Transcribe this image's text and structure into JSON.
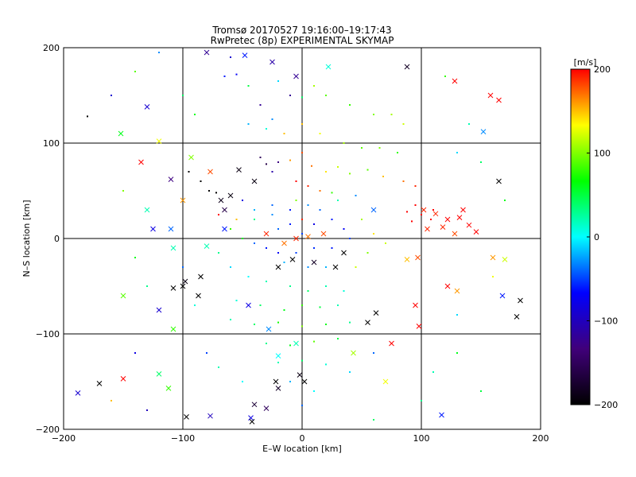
{
  "chart_data": {
    "type": "scatter",
    "title": "Tromsø 20170527 19:16:00–19:17:43",
    "subtitle": "RwPretec (8p) EXPERIMENTAL SKYMAP",
    "xlabel": "E–W location [km]",
    "ylabel": "N–S location [km]",
    "xlim": [
      -200,
      200
    ],
    "ylim": [
      -200,
      200
    ],
    "x_ticks": [
      -200,
      -100,
      0,
      100,
      200
    ],
    "y_ticks": [
      -200,
      -100,
      0,
      100,
      200
    ],
    "x_tick_labels": [
      "−200",
      "−100",
      "0",
      "100",
      "200"
    ],
    "y_tick_labels": [
      "−200",
      "−100",
      "0",
      "100",
      "200"
    ],
    "grid": true,
    "grid_lines_x": [
      -100,
      0,
      100
    ],
    "grid_lines_y": [
      -100,
      0,
      100
    ],
    "colorbar": {
      "label": "[m/s]",
      "range": [
        -200,
        200
      ],
      "ticks": [
        200,
        100,
        0,
        -100,
        -200
      ],
      "tick_labels": [
        "200",
        "100",
        "0",
        "−100",
        "−200"
      ],
      "colormap": [
        "#000000",
        "#40007a",
        "#0000ff",
        "#00ffff",
        "#00ff00",
        "#ffff00",
        "#ff0000"
      ]
    },
    "series": [
      {
        "marker": "cross",
        "points": [
          [
            -80,
            195,
            -120
          ],
          [
            -48,
            192,
            -60
          ],
          [
            -25,
            185,
            -110
          ],
          [
            -5,
            170,
            -120
          ],
          [
            22,
            180,
            10
          ],
          [
            88,
            180,
            -180
          ],
          [
            128,
            165,
            200
          ],
          [
            158,
            150,
            200
          ],
          [
            165,
            145,
            200
          ],
          [
            152,
            112,
            -30
          ],
          [
            -152,
            110,
            60
          ],
          [
            -130,
            138,
            -90
          ],
          [
            -120,
            102,
            130
          ],
          [
            -93,
            85,
            100
          ],
          [
            -77,
            70,
            180
          ],
          [
            -40,
            60,
            -190
          ],
          [
            -53,
            72,
            -190
          ],
          [
            -60,
            45,
            -190
          ],
          [
            -68,
            40,
            -185
          ],
          [
            -65,
            30,
            -160
          ],
          [
            -110,
            62,
            -130
          ],
          [
            -130,
            30,
            20
          ],
          [
            -125,
            10,
            -80
          ],
          [
            -110,
            10,
            -40
          ],
          [
            -65,
            10,
            -60
          ],
          [
            -30,
            5,
            190
          ],
          [
            -15,
            -5,
            170
          ],
          [
            -5,
            0,
            190
          ],
          [
            5,
            2,
            170
          ],
          [
            18,
            5,
            180
          ],
          [
            35,
            -15,
            -200
          ],
          [
            -8,
            -22,
            -200
          ],
          [
            -20,
            -30,
            -200
          ],
          [
            28,
            -30,
            -200
          ],
          [
            10,
            -25,
            -180
          ],
          [
            -85,
            -40,
            -200
          ],
          [
            -98,
            -45,
            -190
          ],
          [
            -100,
            -50,
            -200
          ],
          [
            -108,
            -52,
            -200
          ],
          [
            -87,
            -60,
            -200
          ],
          [
            -45,
            -70,
            -80
          ],
          [
            55,
            -88,
            -200
          ],
          [
            62,
            -78,
            -200
          ],
          [
            183,
            -65,
            -200
          ],
          [
            180,
            -82,
            -200
          ],
          [
            122,
            -50,
            200
          ],
          [
            130,
            -55,
            160
          ],
          [
            95,
            -70,
            200
          ],
          [
            98,
            -92,
            200
          ],
          [
            -150,
            -60,
            90
          ],
          [
            -120,
            -75,
            -90
          ],
          [
            -108,
            -95,
            80
          ],
          [
            -28,
            -95,
            -30
          ],
          [
            -5,
            -110,
            20
          ],
          [
            -20,
            -123,
            0
          ],
          [
            -2,
            -143,
            -190
          ],
          [
            2,
            -150,
            -200
          ],
          [
            -22,
            -150,
            -200
          ],
          [
            -20,
            -157,
            -180
          ],
          [
            -40,
            -174,
            -170
          ],
          [
            -30,
            -178,
            -150
          ],
          [
            -43,
            -188,
            -80
          ],
          [
            -42,
            -192,
            -200
          ],
          [
            -97,
            -187,
            -200
          ],
          [
            -77,
            -186,
            -100
          ],
          [
            -150,
            -147,
            200
          ],
          [
            -112,
            -157,
            80
          ],
          [
            -120,
            -142,
            40
          ],
          [
            -170,
            -152,
            -200
          ],
          [
            -188,
            -162,
            -90
          ],
          [
            -108,
            -10,
            20
          ],
          [
            -80,
            -8,
            20
          ],
          [
            -100,
            40,
            160
          ],
          [
            60,
            30,
            -40
          ],
          [
            102,
            30,
            190
          ],
          [
            112,
            26,
            190
          ],
          [
            122,
            20,
            200
          ],
          [
            132,
            22,
            200
          ],
          [
            140,
            14,
            200
          ],
          [
            146,
            7,
            200
          ],
          [
            118,
            12,
            190
          ],
          [
            135,
            30,
            200
          ],
          [
            128,
            5,
            180
          ],
          [
            105,
            10,
            190
          ],
          [
            97,
            -20,
            180
          ],
          [
            88,
            -22,
            150
          ],
          [
            43,
            -120,
            110
          ],
          [
            70,
            -150,
            130
          ],
          [
            75,
            -110,
            200
          ],
          [
            -135,
            80,
            200
          ],
          [
            165,
            60,
            -200
          ],
          [
            160,
            -20,
            160
          ],
          [
            170,
            -22,
            120
          ],
          [
            168,
            -60,
            -60
          ],
          [
            117,
            -185,
            -60
          ]
        ]
      },
      {
        "marker": "dot",
        "points": [
          [
            -120,
            195,
            -30
          ],
          [
            -60,
            190,
            -90
          ],
          [
            -65,
            170,
            -60
          ],
          [
            -55,
            172,
            -70
          ],
          [
            -45,
            160,
            50
          ],
          [
            -20,
            165,
            -10
          ],
          [
            -10,
            150,
            -120
          ],
          [
            0,
            148,
            40
          ],
          [
            10,
            160,
            110
          ],
          [
            20,
            150,
            90
          ],
          [
            40,
            140,
            80
          ],
          [
            60,
            130,
            100
          ],
          [
            75,
            130,
            110
          ],
          [
            85,
            120,
            120
          ],
          [
            -25,
            125,
            -30
          ],
          [
            -45,
            120,
            -20
          ],
          [
            -35,
            140,
            -120
          ],
          [
            -30,
            115,
            10
          ],
          [
            -15,
            110,
            150
          ],
          [
            0,
            120,
            150
          ],
          [
            15,
            110,
            130
          ],
          [
            35,
            100,
            110
          ],
          [
            50,
            95,
            90
          ],
          [
            65,
            95,
            100
          ],
          [
            80,
            90,
            80
          ],
          [
            -35,
            85,
            -150
          ],
          [
            -30,
            78,
            -160
          ],
          [
            -20,
            80,
            -130
          ],
          [
            -25,
            70,
            -110
          ],
          [
            -10,
            82,
            160
          ],
          [
            0,
            90,
            180
          ],
          [
            8,
            76,
            170
          ],
          [
            20,
            70,
            140
          ],
          [
            30,
            75,
            120
          ],
          [
            40,
            68,
            100
          ],
          [
            55,
            72,
            90
          ],
          [
            68,
            65,
            150
          ],
          [
            85,
            60,
            170
          ],
          [
            95,
            55,
            190
          ],
          [
            -5,
            60,
            200
          ],
          [
            5,
            55,
            190
          ],
          [
            15,
            50,
            170
          ],
          [
            25,
            48,
            80
          ],
          [
            30,
            40,
            20
          ],
          [
            45,
            45,
            -30
          ],
          [
            -50,
            40,
            -80
          ],
          [
            -40,
            30,
            -20
          ],
          [
            -25,
            35,
            -40
          ],
          [
            -10,
            30,
            -60
          ],
          [
            0,
            20,
            190
          ],
          [
            -20,
            10,
            -40
          ],
          [
            -10,
            15,
            -60
          ],
          [
            0,
            5,
            -50
          ],
          [
            10,
            15,
            -80
          ],
          [
            25,
            20,
            -60
          ],
          [
            35,
            10,
            -70
          ],
          [
            40,
            0,
            -50
          ],
          [
            -40,
            -5,
            -40
          ],
          [
            -30,
            -10,
            -60
          ],
          [
            -20,
            -15,
            -70
          ],
          [
            -5,
            -15,
            -50
          ],
          [
            10,
            -10,
            -55
          ],
          [
            25,
            -10,
            -60
          ],
          [
            -15,
            -25,
            -20
          ],
          [
            5,
            -30,
            -30
          ],
          [
            20,
            -30,
            -20
          ],
          [
            -60,
            -30,
            -10
          ],
          [
            -45,
            -40,
            0
          ],
          [
            -30,
            -45,
            20
          ],
          [
            -10,
            -50,
            30
          ],
          [
            5,
            -55,
            40
          ],
          [
            20,
            -50,
            20
          ],
          [
            35,
            -55,
            10
          ],
          [
            -55,
            -65,
            10
          ],
          [
            -35,
            -70,
            40
          ],
          [
            -15,
            -75,
            60
          ],
          [
            0,
            -70,
            80
          ],
          [
            15,
            -72,
            50
          ],
          [
            30,
            -70,
            20
          ],
          [
            -60,
            -85,
            20
          ],
          [
            -40,
            -90,
            40
          ],
          [
            -20,
            -88,
            70
          ],
          [
            0,
            -92,
            100
          ],
          [
            20,
            -90,
            60
          ],
          [
            40,
            -88,
            30
          ],
          [
            -30,
            -110,
            30
          ],
          [
            -10,
            -112,
            60
          ],
          [
            10,
            -108,
            90
          ],
          [
            30,
            -105,
            50
          ],
          [
            -20,
            -130,
            20
          ],
          [
            0,
            -128,
            40
          ],
          [
            20,
            -132,
            10
          ],
          [
            -10,
            -150,
            -20
          ],
          [
            10,
            -160,
            0
          ],
          [
            0,
            -175,
            -40
          ],
          [
            -95,
            70,
            -200
          ],
          [
            -85,
            60,
            -200
          ],
          [
            -78,
            50,
            -200
          ],
          [
            -72,
            48,
            -200
          ],
          [
            95,
            35,
            200
          ],
          [
            100,
            25,
            200
          ],
          [
            108,
            20,
            200
          ],
          [
            88,
            28,
            200
          ],
          [
            92,
            18,
            200
          ],
          [
            110,
            30,
            200
          ],
          [
            -180,
            128,
            -200
          ],
          [
            -160,
            150,
            -90
          ],
          [
            -140,
            175,
            90
          ],
          [
            -100,
            150,
            40
          ],
          [
            -90,
            130,
            60
          ],
          [
            -150,
            50,
            100
          ],
          [
            -140,
            -20,
            60
          ],
          [
            -130,
            -50,
            30
          ],
          [
            -100,
            -30,
            -40
          ],
          [
            -90,
            -70,
            10
          ],
          [
            -140,
            -120,
            -80
          ],
          [
            -160,
            -170,
            150
          ],
          [
            -130,
            -180,
            -100
          ],
          [
            130,
            -120,
            60
          ],
          [
            150,
            -160,
            50
          ],
          [
            110,
            -140,
            20
          ],
          [
            100,
            -170,
            30
          ],
          [
            60,
            -190,
            40
          ],
          [
            120,
            170,
            80
          ],
          [
            140,
            120,
            20
          ],
          [
            130,
            90,
            -10
          ],
          [
            150,
            80,
            40
          ],
          [
            170,
            40,
            60
          ],
          [
            160,
            -40,
            130
          ],
          [
            130,
            -80,
            -10
          ],
          [
            -60,
            10,
            80
          ],
          [
            -50,
            0,
            60
          ],
          [
            -70,
            -15,
            30
          ],
          [
            -55,
            20,
            150
          ],
          [
            -70,
            25,
            200
          ],
          [
            -40,
            20,
            30
          ],
          [
            -25,
            25,
            -30
          ],
          [
            5,
            35,
            -30
          ],
          [
            15,
            30,
            -40
          ],
          [
            -5,
            40,
            100
          ],
          [
            50,
            20,
            110
          ],
          [
            60,
            5,
            140
          ],
          [
            70,
            -5,
            120
          ],
          [
            55,
            -15,
            100
          ],
          [
            45,
            -30,
            120
          ],
          [
            -80,
            -120,
            -50
          ],
          [
            -70,
            -135,
            20
          ],
          [
            -50,
            -150,
            0
          ],
          [
            40,
            -140,
            -10
          ],
          [
            60,
            -120,
            -40
          ]
        ]
      }
    ]
  }
}
